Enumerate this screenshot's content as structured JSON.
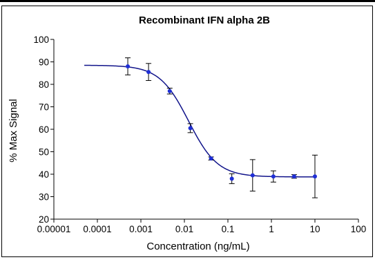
{
  "chart_data": {
    "type": "scatter",
    "title": "Recombinant IFN alpha 2B",
    "xlabel": "Concentration (ng/mL)",
    "ylabel": "% Max Signal",
    "x_scale": "log",
    "xlim": [
      1e-05,
      100
    ],
    "ylim": [
      20,
      100
    ],
    "x_ticks": [
      {
        "value": 1e-05,
        "label": "0.00001"
      },
      {
        "value": 0.0001,
        "label": "0.0001"
      },
      {
        "value": 0.001,
        "label": "0.001"
      },
      {
        "value": 0.01,
        "label": "0.01"
      },
      {
        "value": 0.1,
        "label": "0.1"
      },
      {
        "value": 1,
        "label": "1"
      },
      {
        "value": 10,
        "label": "10"
      },
      {
        "value": 100,
        "label": "100"
      }
    ],
    "y_ticks": [
      {
        "value": 20,
        "label": "20"
      },
      {
        "value": 30,
        "label": "30"
      },
      {
        "value": 40,
        "label": "40"
      },
      {
        "value": 50,
        "label": "50"
      },
      {
        "value": 60,
        "label": "60"
      },
      {
        "value": 70,
        "label": "70"
      },
      {
        "value": 80,
        "label": "80"
      },
      {
        "value": 90,
        "label": "90"
      },
      {
        "value": 100,
        "label": "100"
      }
    ],
    "grid": false,
    "legend": "none",
    "series": [
      {
        "points": [
          {
            "x": 0.0005,
            "y": 88.0,
            "err": 3.8
          },
          {
            "x": 0.0015,
            "y": 85.5,
            "err": 3.8
          },
          {
            "x": 0.0046,
            "y": 77.0,
            "err": 1.3
          },
          {
            "x": 0.0137,
            "y": 60.5,
            "err": 2.0
          },
          {
            "x": 0.041,
            "y": 47.0,
            "err": 0.7
          },
          {
            "x": 0.123,
            "y": 38.0,
            "err": 2.2
          },
          {
            "x": 0.37,
            "y": 39.5,
            "err": 7.0
          },
          {
            "x": 1.11,
            "y": 39.0,
            "err": 2.5
          },
          {
            "x": 3.33,
            "y": 39.0,
            "err": 0.8
          },
          {
            "x": 10,
            "y": 39.0,
            "err": 9.5
          }
        ],
        "fit": {
          "top": 88.5,
          "bottom": 38.8,
          "ec50": 0.0125,
          "hill": 1.3,
          "x_range": [
            5e-05,
            10
          ]
        }
      }
    ],
    "colors": {
      "points": "#1f2fd6",
      "curve": "#10138a",
      "error_bars": "#000000"
    }
  }
}
